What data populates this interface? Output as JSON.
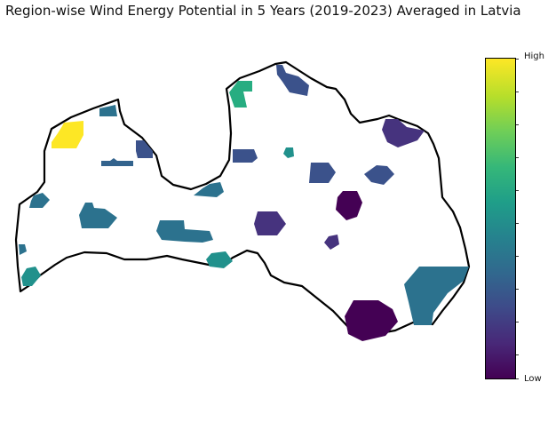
{
  "title": "Region-wise Wind Energy Potential in 5 Years (2019-2023) Averaged in Latvia",
  "colorbar": {
    "high_label": "High",
    "low_label": "Low",
    "colormap": "viridis",
    "tick_count": 10
  },
  "colors": {
    "low": "#440154",
    "low_mid": "#3b528b",
    "mid": "#2c728e",
    "mid_high": "#21918c",
    "high_green": "#27ad81",
    "high": "#fde725",
    "border": "#000000"
  },
  "regions": [
    {
      "id": "nw-yellow",
      "level": "high"
    },
    {
      "id": "north-teal",
      "level": "high_green"
    },
    {
      "id": "ne-blue",
      "level": "low_mid"
    },
    {
      "id": "east-purple",
      "level": "low"
    },
    {
      "id": "se-large-teal",
      "level": "mid"
    },
    {
      "id": "south-dark",
      "level": "low"
    }
  ]
}
